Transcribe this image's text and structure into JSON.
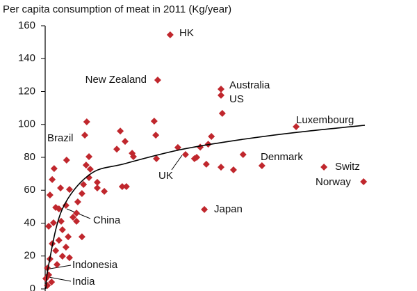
{
  "chart_data": {
    "type": "scatter",
    "title": "Per capita consumption of meat in 2011 (Kg/year)",
    "xlim": [
      0,
      100
    ],
    "ylim": [
      0,
      160
    ],
    "yticks": [
      0,
      20,
      40,
      60,
      80,
      100,
      120,
      140,
      160
    ],
    "color": "#c0272d",
    "series": [
      {
        "x": [
          39.1,
          35.2,
          55,
          55,
          55.4,
          78.5,
          67.8,
          87.2,
          99.6,
          49.8,
          13,
          12.4,
          34.1,
          34.6,
          23.5,
          25,
          22.4,
          27.2,
          34.8,
          41.5,
          43.9,
          47.4,
          48.5,
          51,
          52,
          50.4,
          55,
          58.9,
          61.9,
          46.7,
          27.6,
          24.1,
          25.4,
          18.5,
          16.3,
          13.7,
          14.1,
          13.7,
          12.8,
          6.7,
          2.8,
          2.2,
          4.8,
          7.6,
          10.2,
          12,
          16.3,
          9.8,
          11.5,
          1.5,
          3.3,
          4.3,
          6.5,
          1.1,
          2.6,
          5,
          5.4,
          7.2,
          11.5,
          4.3,
          2.2,
          6.5,
          3.3,
          5.4,
          1.5,
          7.6,
          0.7,
          1.1,
          0.2,
          2,
          0.7,
          3.7,
          9.8,
          8.7
        ],
        "values": [
          154.5,
          127,
          121.5,
          117.7,
          106.7,
          98.6,
          74.9,
          74.1,
          65.2,
          48.3,
          101.6,
          93.5,
          102,
          93.5,
          96,
          89.7,
          85,
          82.5,
          79.2,
          86,
          81.7,
          80,
          86.2,
          88,
          92.7,
          75.8,
          74,
          72.4,
          81.7,
          79.2,
          80.4,
          62.2,
          62.2,
          59.3,
          61.4,
          67.7,
          72.8,
          80.4,
          75.3,
          78.3,
          73.2,
          66.5,
          61.4,
          60.5,
          52.9,
          63.5,
          64.8,
          46.1,
          58,
          57.1,
          49.5,
          48.7,
          50.8,
          38.1,
          40.2,
          41.1,
          36,
          31.7,
          31.7,
          29.6,
          27.5,
          25.4,
          23.3,
          19.9,
          18.2,
          19,
          12.7,
          8.5,
          6.3,
          4.2,
          2.1,
          14.8,
          41.1,
          43.6
        ]
      }
    ],
    "trend": {
      "x": [
        0.2,
        1.1,
        5.4,
        14.1,
        25,
        42.4,
        62,
        79.3,
        100
      ],
      "values": [
        0,
        14.8,
        48.7,
        69.8,
        76.2,
        84.7,
        91,
        95.3,
        99.5
      ]
    },
    "annotations": [
      "HK",
      "New Zealand",
      "Australia",
      "US",
      "Luxembourg",
      "Denmark",
      "Switz",
      "Norway",
      "Japan",
      "UK",
      "Brazil",
      "China",
      "Indonesia",
      "India"
    ]
  }
}
